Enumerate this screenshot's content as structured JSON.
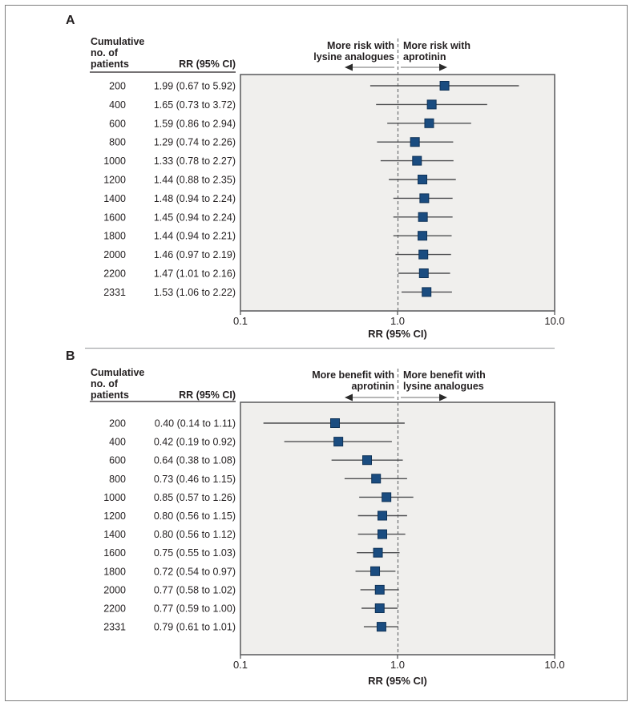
{
  "table_header": {
    "col1": "Cumulative\nno. of\npatients",
    "col2": "RR (95% CI)"
  },
  "colors": {
    "marker_fill": "#1A4C80",
    "marker_border": "#0F3257",
    "ci_line": "#4D4E50",
    "plot_bg": "#F0EFED",
    "plot_border": "#58595B",
    "dashed_line": "#6D6E71",
    "arrow_shaft": "#8A8A8A",
    "arrow_head": "#2B2B2B",
    "text": "#231F20",
    "divider": "#A7A9AC",
    "underline": "#231F20"
  },
  "chart_data": [
    {
      "type": "forest",
      "panel_label": "A",
      "direction_left": "More risk with\nlysine analogues",
      "direction_right": "More risk with\naprotinin",
      "xlabel": "RR (95% CI)",
      "x_scale": "log",
      "xlim": [
        0.1,
        10.0
      ],
      "x_ticks": [
        "0.1",
        "1.0",
        "10.0"
      ],
      "reference_line": 1.0,
      "columns": [
        "Cumulative no. of patients",
        "RR (95% CI)"
      ],
      "rows": [
        {
          "patients": "200",
          "rr": 1.99,
          "ci_low": 0.67,
          "ci_high": 5.92,
          "label": "1.99 (0.67 to 5.92)"
        },
        {
          "patients": "400",
          "rr": 1.65,
          "ci_low": 0.73,
          "ci_high": 3.72,
          "label": "1.65 (0.73 to 3.72)"
        },
        {
          "patients": "600",
          "rr": 1.59,
          "ci_low": 0.86,
          "ci_high": 2.94,
          "label": "1.59 (0.86 to 2.94)"
        },
        {
          "patients": "800",
          "rr": 1.29,
          "ci_low": 0.74,
          "ci_high": 2.26,
          "label": "1.29 (0.74 to 2.26)"
        },
        {
          "patients": "1000",
          "rr": 1.33,
          "ci_low": 0.78,
          "ci_high": 2.27,
          "label": "1.33 (0.78 to 2.27)"
        },
        {
          "patients": "1200",
          "rr": 1.44,
          "ci_low": 0.88,
          "ci_high": 2.35,
          "label": "1.44 (0.88 to 2.35)"
        },
        {
          "patients": "1400",
          "rr": 1.48,
          "ci_low": 0.94,
          "ci_high": 2.24,
          "label": "1.48 (0.94 to 2.24)"
        },
        {
          "patients": "1600",
          "rr": 1.45,
          "ci_low": 0.94,
          "ci_high": 2.24,
          "label": "1.45 (0.94 to 2.24)"
        },
        {
          "patients": "1800",
          "rr": 1.44,
          "ci_low": 0.94,
          "ci_high": 2.21,
          "label": "1.44 (0.94 to 2.21)"
        },
        {
          "patients": "2000",
          "rr": 1.46,
          "ci_low": 0.97,
          "ci_high": 2.19,
          "label": "1.46 (0.97 to 2.19)"
        },
        {
          "patients": "2200",
          "rr": 1.47,
          "ci_low": 1.01,
          "ci_high": 2.16,
          "label": "1.47 (1.01 to 2.16)"
        },
        {
          "patients": "2331",
          "rr": 1.53,
          "ci_low": 1.06,
          "ci_high": 2.22,
          "label": "1.53 (1.06 to 2.22)"
        }
      ]
    },
    {
      "type": "forest",
      "panel_label": "B",
      "direction_left": "More benefit with\naprotinin",
      "direction_right": "More benefit with\nlysine analogues",
      "xlabel": "RR (95% CI)",
      "x_scale": "log",
      "xlim": [
        0.1,
        10.0
      ],
      "x_ticks": [
        "0.1",
        "1.0",
        "10.0"
      ],
      "reference_line": 1.0,
      "columns": [
        "Cumulative no. of patients",
        "RR (95% CI)"
      ],
      "rows": [
        {
          "patients": "200",
          "rr": 0.4,
          "ci_low": 0.14,
          "ci_high": 1.11,
          "label": "0.40 (0.14 to 1.11)"
        },
        {
          "patients": "400",
          "rr": 0.42,
          "ci_low": 0.19,
          "ci_high": 0.92,
          "label": "0.42 (0.19 to 0.92)"
        },
        {
          "patients": "600",
          "rr": 0.64,
          "ci_low": 0.38,
          "ci_high": 1.08,
          "label": "0.64 (0.38 to 1.08)"
        },
        {
          "patients": "800",
          "rr": 0.73,
          "ci_low": 0.46,
          "ci_high": 1.15,
          "label": "0.73 (0.46 to 1.15)"
        },
        {
          "patients": "1000",
          "rr": 0.85,
          "ci_low": 0.57,
          "ci_high": 1.26,
          "label": "0.85 (0.57 to 1.26)"
        },
        {
          "patients": "1200",
          "rr": 0.8,
          "ci_low": 0.56,
          "ci_high": 1.15,
          "label": "0.80 (0.56 to 1.15)"
        },
        {
          "patients": "1400",
          "rr": 0.8,
          "ci_low": 0.56,
          "ci_high": 1.12,
          "label": "0.80 (0.56 to 1.12)"
        },
        {
          "patients": "1600",
          "rr": 0.75,
          "ci_low": 0.55,
          "ci_high": 1.03,
          "label": "0.75 (0.55 to 1.03)"
        },
        {
          "patients": "1800",
          "rr": 0.72,
          "ci_low": 0.54,
          "ci_high": 0.97,
          "label": "0.72 (0.54 to 0.97)"
        },
        {
          "patients": "2000",
          "rr": 0.77,
          "ci_low": 0.58,
          "ci_high": 1.02,
          "label": "0.77 (0.58 to 1.02)"
        },
        {
          "patients": "2200",
          "rr": 0.77,
          "ci_low": 0.59,
          "ci_high": 1.0,
          "label": "0.77 (0.59 to 1.00)"
        },
        {
          "patients": "2331",
          "rr": 0.79,
          "ci_low": 0.61,
          "ci_high": 1.01,
          "label": "0.79 (0.61 to 1.01)"
        }
      ]
    }
  ]
}
